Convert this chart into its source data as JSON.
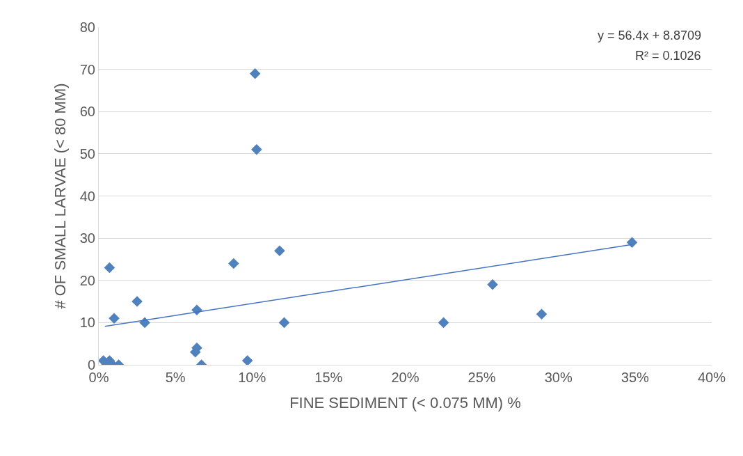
{
  "chart_data": {
    "type": "scatter",
    "xlabel": "FINE SEDIMENT (< 0.075 MM) %",
    "ylabel": "# OF SMALL LARVAE (< 80 MM)",
    "series": [
      {
        "color": "#4f81bd",
        "marker": "diamond",
        "x": [
          0.003,
          0.005,
          0.007,
          0.007,
          0.009,
          0.01,
          0.013,
          0.025,
          0.03,
          0.063,
          0.064,
          0.064,
          0.067,
          0.088,
          0.097,
          0.102,
          0.103,
          0.118,
          0.121,
          0.225,
          0.257,
          0.289,
          0.348
        ],
        "values": [
          1,
          0,
          1,
          23,
          0,
          11,
          0,
          15,
          10,
          3,
          4,
          13,
          0,
          24,
          1,
          69,
          51,
          27,
          10,
          10,
          19,
          12,
          29
        ]
      },
      {
        "type": "line",
        "color": "#4472c4",
        "marker": "none",
        "x": [
          0.004,
          0.348
        ],
        "values": [
          9.1,
          28.5
        ]
      }
    ],
    "annotations": [
      "y = 56.4x + 8.8709",
      "R² = 0.1026"
    ],
    "xlim": [
      0,
      0.4
    ],
    "xticks": [
      {
        "value": 0,
        "label": "0%"
      },
      {
        "value": 0.05,
        "label": "5%"
      },
      {
        "value": 0.1,
        "label": "10%"
      },
      {
        "value": 0.15,
        "label": "15%"
      },
      {
        "value": 0.2,
        "label": "20%"
      },
      {
        "value": 0.25,
        "label": "25%"
      },
      {
        "value": 0.3,
        "label": "30%"
      },
      {
        "value": 0.35,
        "label": "35%"
      },
      {
        "value": 0.4,
        "label": "40%"
      }
    ],
    "ylim": [
      0,
      80
    ],
    "yticks": [
      0,
      10,
      20,
      30,
      40,
      50,
      60,
      70,
      80
    ],
    "grid": "y"
  }
}
